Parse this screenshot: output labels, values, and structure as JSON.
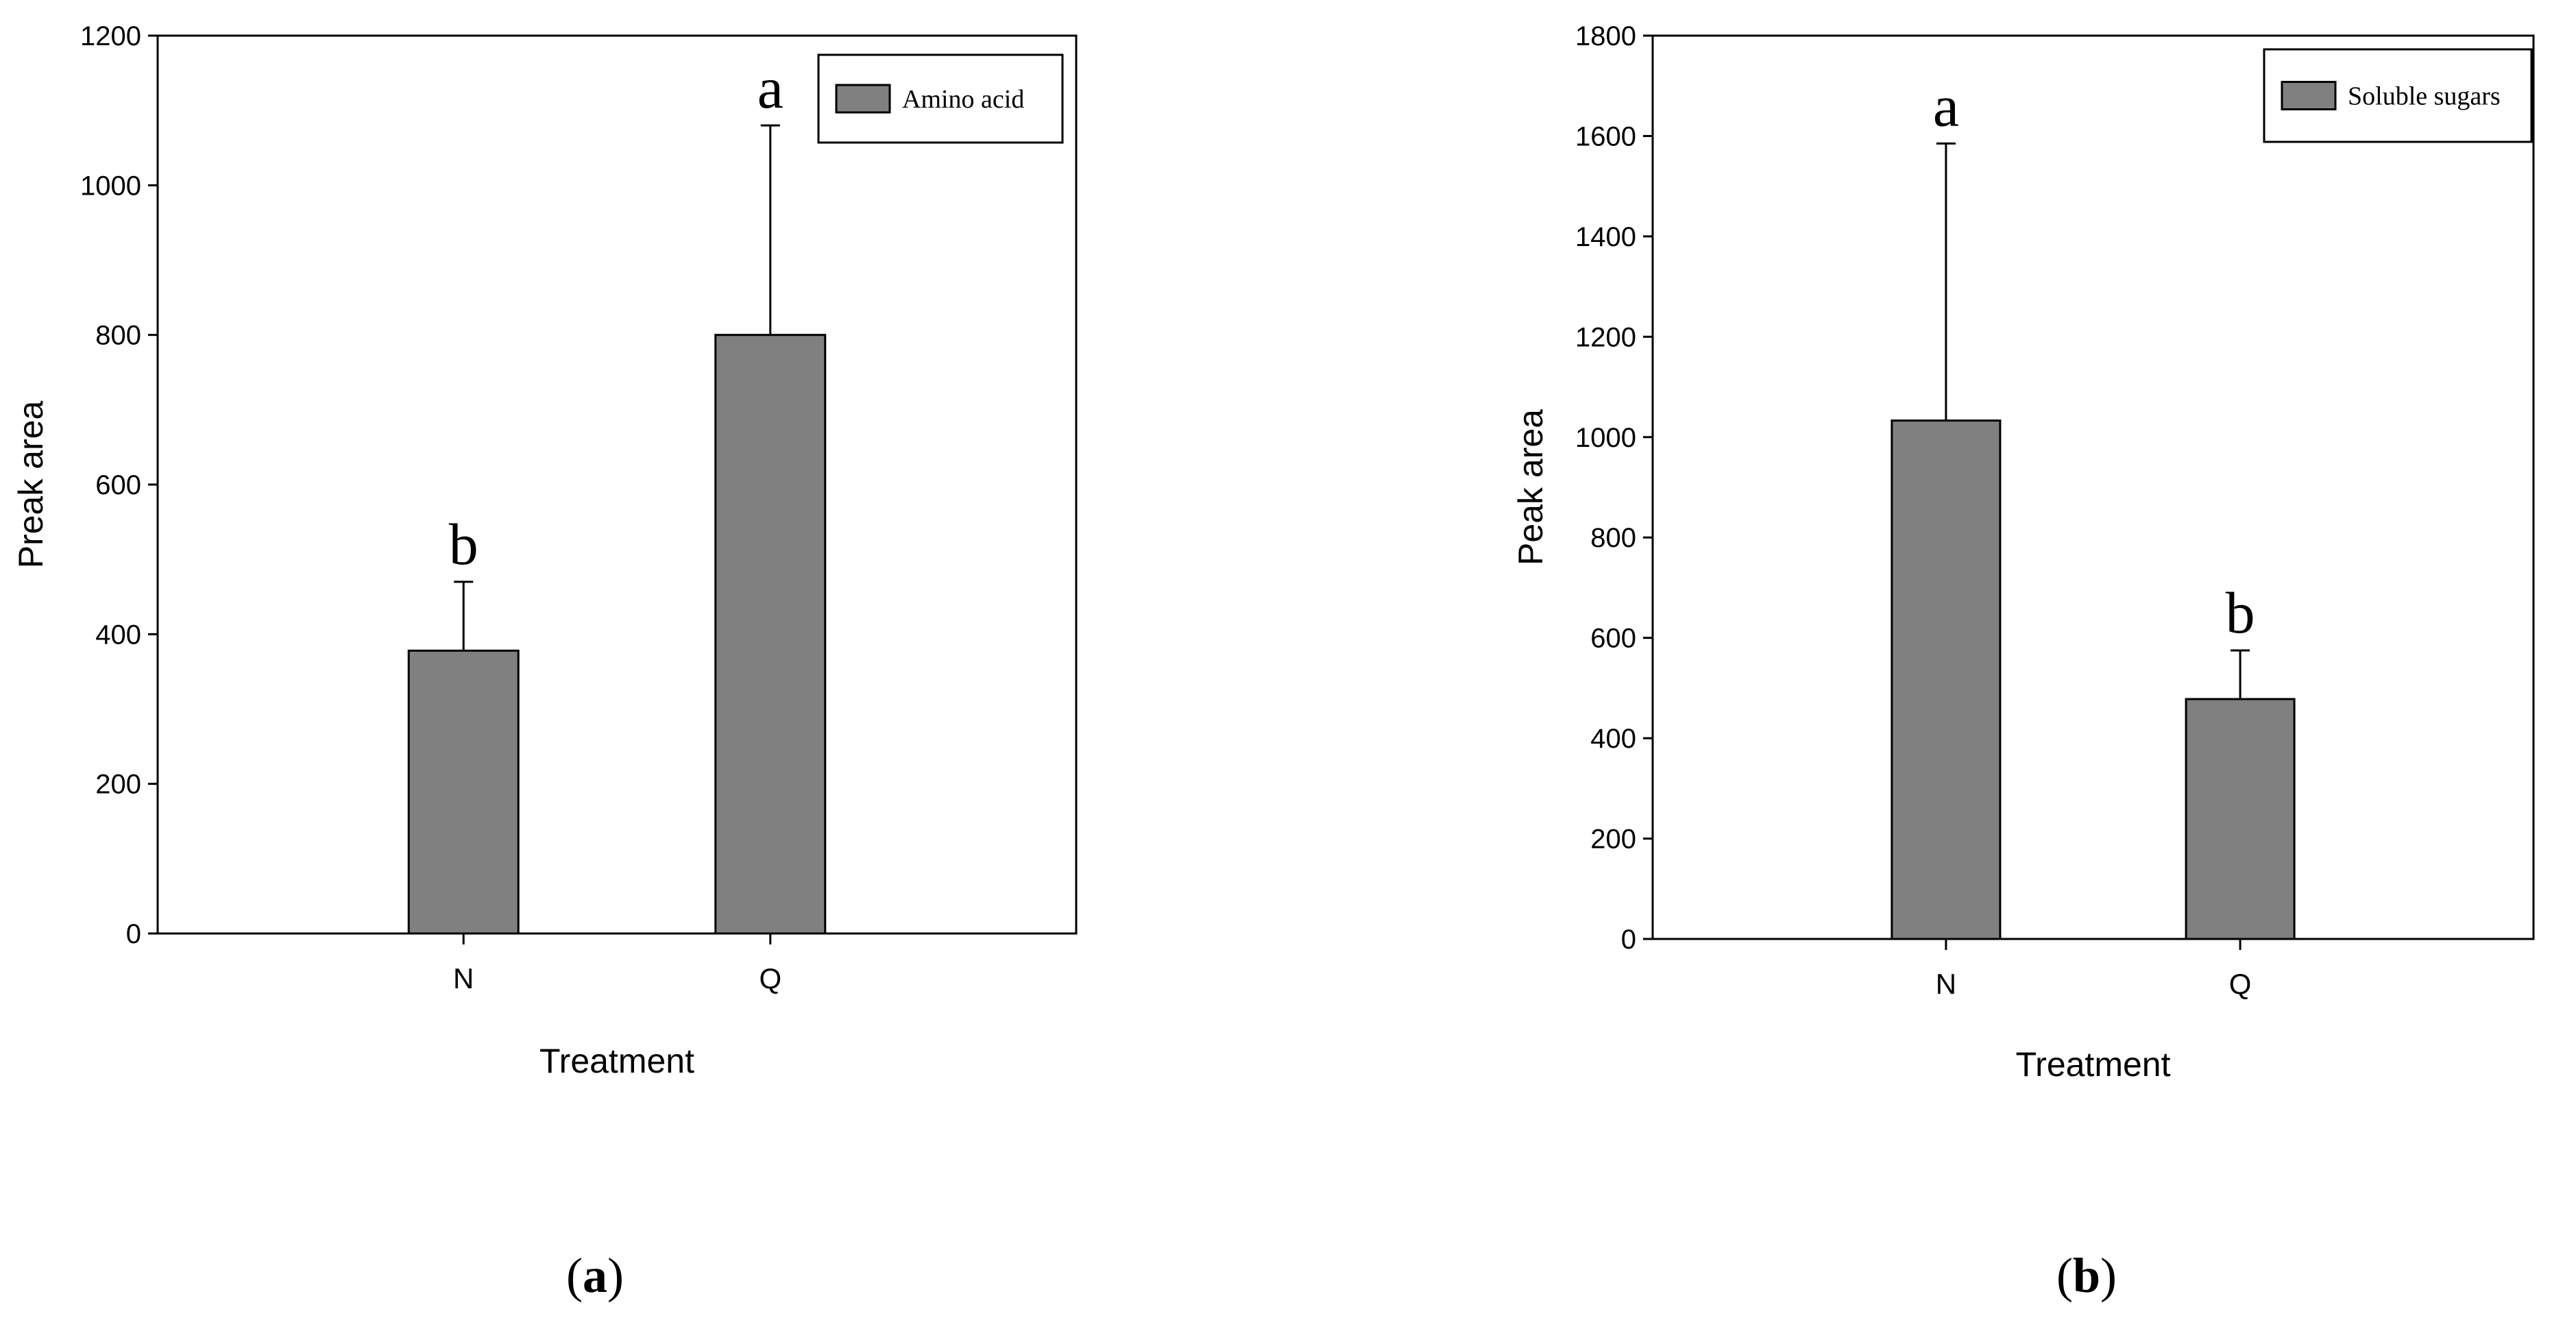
{
  "colors": {
    "bar": "#808080",
    "axis": "#000000",
    "background": "#ffffff"
  },
  "chart_data": [
    {
      "type": "bar",
      "panel_label": "a",
      "categories": [
        "N",
        "Q"
      ],
      "series": [
        {
          "name": "Amino acid",
          "values": [
            378,
            800
          ],
          "errors": [
            92,
            280
          ],
          "significance": [
            "b",
            "a"
          ]
        }
      ],
      "xlabel": "Treatment",
      "ylabel": "Preak area",
      "ylim": [
        0,
        1200
      ],
      "yticks": [
        "0",
        "200",
        "400",
        "600",
        "800",
        "1000",
        "1200"
      ],
      "legend": "top-right",
      "grid": false
    },
    {
      "type": "bar",
      "panel_label": "b",
      "categories": [
        "N",
        "Q"
      ],
      "series": [
        {
          "name": "Soluble sugars",
          "values": [
            1033,
            478
          ],
          "errors": [
            552,
            97
          ],
          "significance": [
            "a",
            "b"
          ]
        }
      ],
      "xlabel": "Treatment",
      "ylabel": "Peak area",
      "ylim": [
        0,
        1800
      ],
      "yticks": [
        "0",
        "200",
        "400",
        "600",
        "800",
        "1000",
        "1200",
        "1400",
        "1600",
        "1800"
      ],
      "legend": "top-right",
      "grid": false
    }
  ]
}
